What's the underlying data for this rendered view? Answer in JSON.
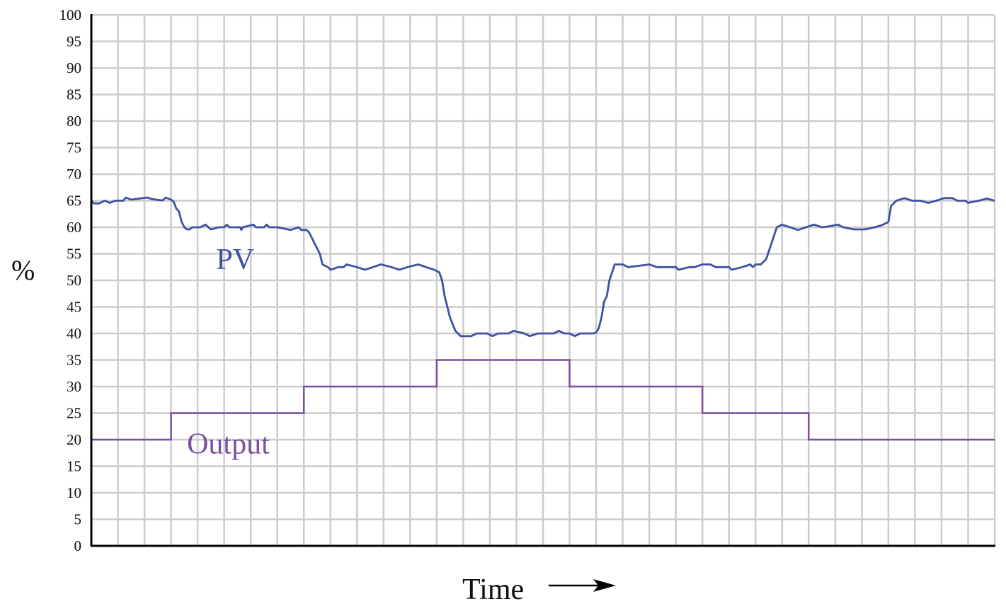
{
  "chart_data": {
    "type": "line",
    "title": "",
    "xlabel": "Time",
    "xlabel_arrow": "right-arrow",
    "ylabel": "%",
    "ylim": [
      0,
      100
    ],
    "yticks": [
      0,
      5,
      10,
      15,
      20,
      25,
      30,
      35,
      40,
      45,
      50,
      55,
      60,
      65,
      70,
      75,
      80,
      85,
      90,
      95,
      100
    ],
    "xlim": [
      0,
      34
    ],
    "x_units": "grid divisions (no tick labels shown)",
    "grid": true,
    "grid_color": "#cccccc",
    "legend": "inline labels",
    "series": [
      {
        "name": "PV",
        "label": "PV",
        "color": "#3f51a0",
        "label_pos": {
          "x": 4.7,
          "y": 54
        },
        "points": [
          [
            0,
            65
          ],
          [
            0.1,
            64.5
          ],
          [
            0.3,
            64.5
          ],
          [
            0.5,
            65
          ],
          [
            0.7,
            64.6
          ],
          [
            0.9,
            65
          ],
          [
            1.1,
            65
          ],
          [
            1.2,
            65
          ],
          [
            1.3,
            65.6
          ],
          [
            1.5,
            65.2
          ],
          [
            1.8,
            65.4
          ],
          [
            2.1,
            65.6
          ],
          [
            2.3,
            65.3
          ],
          [
            2.6,
            65.1
          ],
          [
            2.7,
            65.1
          ],
          [
            2.8,
            65.6
          ],
          [
            3.0,
            65.2
          ],
          [
            3.1,
            64.8
          ],
          [
            3.2,
            63.5
          ],
          [
            3.3,
            63
          ],
          [
            3.4,
            61
          ],
          [
            3.5,
            60
          ],
          [
            3.6,
            59.6
          ],
          [
            3.7,
            59.6
          ],
          [
            3.8,
            60
          ],
          [
            4.1,
            60
          ],
          [
            4.3,
            60.5
          ],
          [
            4.5,
            59.6
          ],
          [
            4.8,
            60
          ],
          [
            5.0,
            60
          ],
          [
            5.1,
            60.5
          ],
          [
            5.2,
            60
          ],
          [
            5.6,
            60
          ],
          [
            5.65,
            59.5
          ],
          [
            5.7,
            60
          ],
          [
            6.1,
            60.5
          ],
          [
            6.2,
            60
          ],
          [
            6.5,
            60
          ],
          [
            6.6,
            60.5
          ],
          [
            6.7,
            60
          ],
          [
            7.0,
            60
          ],
          [
            7.2,
            59.8
          ],
          [
            7.5,
            59.5
          ],
          [
            7.8,
            60
          ],
          [
            7.9,
            59.5
          ],
          [
            8.1,
            59.5
          ],
          [
            8.2,
            59
          ],
          [
            8.3,
            58
          ],
          [
            8.4,
            57
          ],
          [
            8.5,
            56
          ],
          [
            8.6,
            55
          ],
          [
            8.7,
            53
          ],
          [
            8.9,
            52.5
          ],
          [
            9.0,
            52
          ],
          [
            9.3,
            52.5
          ],
          [
            9.5,
            52.5
          ],
          [
            9.6,
            53
          ],
          [
            10.0,
            52.5
          ],
          [
            10.3,
            52
          ],
          [
            10.6,
            52.5
          ],
          [
            10.9,
            53
          ],
          [
            11.3,
            52.5
          ],
          [
            11.6,
            52
          ],
          [
            11.9,
            52.5
          ],
          [
            12.3,
            53
          ],
          [
            12.6,
            52.5
          ],
          [
            12.9,
            52
          ],
          [
            13.1,
            51.5
          ],
          [
            13.2,
            50
          ],
          [
            13.3,
            47
          ],
          [
            13.4,
            45
          ],
          [
            13.5,
            43
          ],
          [
            13.7,
            40.5
          ],
          [
            13.9,
            39.5
          ],
          [
            14.3,
            39.5
          ],
          [
            14.5,
            40
          ],
          [
            14.9,
            40
          ],
          [
            15.1,
            39.5
          ],
          [
            15.3,
            40
          ],
          [
            15.7,
            40
          ],
          [
            15.9,
            40.5
          ],
          [
            16.3,
            40
          ],
          [
            16.5,
            39.5
          ],
          [
            16.8,
            40
          ],
          [
            17.4,
            40
          ],
          [
            17.6,
            40.5
          ],
          [
            17.8,
            40
          ],
          [
            18.0,
            40
          ],
          [
            18.2,
            39.5
          ],
          [
            18.4,
            40
          ],
          [
            18.9,
            40
          ],
          [
            19.0,
            40.2
          ],
          [
            19.1,
            41
          ],
          [
            19.2,
            43
          ],
          [
            19.3,
            46
          ],
          [
            19.4,
            47
          ],
          [
            19.5,
            50
          ],
          [
            19.6,
            51.5
          ],
          [
            19.7,
            53
          ],
          [
            20.0,
            53
          ],
          [
            20.2,
            52.5
          ],
          [
            20.7,
            52.8
          ],
          [
            21.0,
            53
          ],
          [
            21.3,
            52.5
          ],
          [
            22.0,
            52.5
          ],
          [
            22.1,
            52
          ],
          [
            22.5,
            52.5
          ],
          [
            22.7,
            52.5
          ],
          [
            23.0,
            53
          ],
          [
            23.3,
            53
          ],
          [
            23.5,
            52.5
          ],
          [
            24.0,
            52.5
          ],
          [
            24.1,
            52
          ],
          [
            24.5,
            52.5
          ],
          [
            24.8,
            53
          ],
          [
            24.9,
            52.5
          ],
          [
            25.0,
            53
          ],
          [
            25.2,
            53
          ],
          [
            25.4,
            54
          ],
          [
            25.6,
            57
          ],
          [
            25.8,
            60
          ],
          [
            26.0,
            60.5
          ],
          [
            26.3,
            60
          ],
          [
            26.6,
            59.5
          ],
          [
            26.9,
            60
          ],
          [
            27.2,
            60.5
          ],
          [
            27.5,
            60
          ],
          [
            27.8,
            60.2
          ],
          [
            28.1,
            60.5
          ],
          [
            28.3,
            60
          ],
          [
            28.7,
            59.6
          ],
          [
            29.1,
            59.6
          ],
          [
            29.5,
            60
          ],
          [
            29.8,
            60.5
          ],
          [
            30.0,
            61
          ],
          [
            30.1,
            64
          ],
          [
            30.3,
            65
          ],
          [
            30.6,
            65.5
          ],
          [
            30.9,
            65
          ],
          [
            31.2,
            65
          ],
          [
            31.5,
            64.6
          ],
          [
            31.8,
            65
          ],
          [
            32.1,
            65.5
          ],
          [
            32.4,
            65.5
          ],
          [
            32.6,
            65
          ],
          [
            32.9,
            65
          ],
          [
            33.0,
            64.6
          ],
          [
            33.4,
            65
          ],
          [
            33.7,
            65.4
          ],
          [
            34.0,
            65
          ]
        ]
      },
      {
        "name": "Output",
        "label": "Output",
        "color": "#7b4fa0",
        "label_pos": {
          "x": 3.6,
          "y": 19.3
        },
        "step": true,
        "segments": [
          {
            "x_start": 0,
            "x_end": 3,
            "value": 20
          },
          {
            "x_start": 3,
            "x_end": 8,
            "value": 25
          },
          {
            "x_start": 8,
            "x_end": 13,
            "value": 30
          },
          {
            "x_start": 13,
            "x_end": 18,
            "value": 35
          },
          {
            "x_start": 18,
            "x_end": 23,
            "value": 30
          },
          {
            "x_start": 23,
            "x_end": 27,
            "value": 25
          },
          {
            "x_start": 27,
            "x_end": 34,
            "value": 20
          }
        ]
      }
    ]
  }
}
